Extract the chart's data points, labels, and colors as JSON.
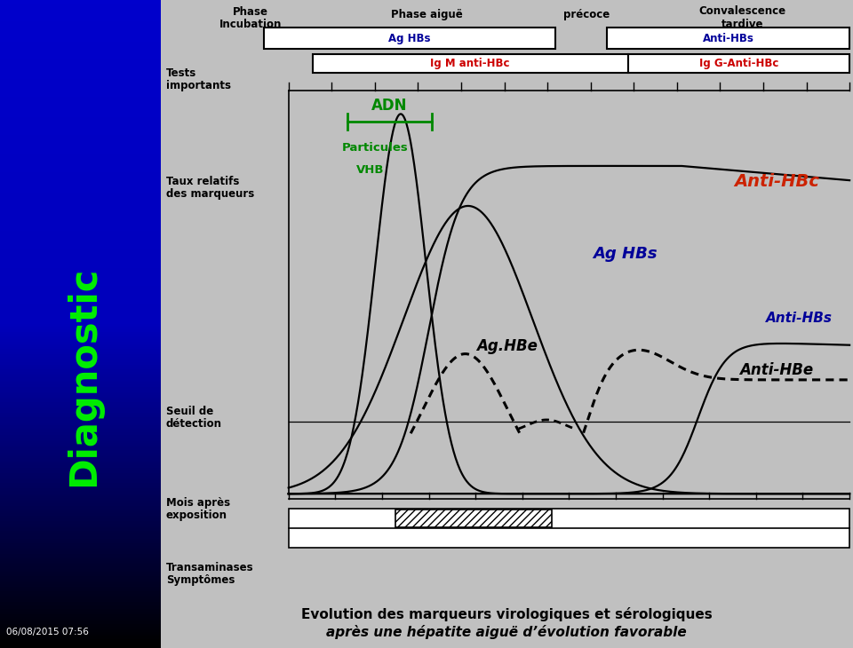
{
  "bg_left_top": "#0000CC",
  "bg_left_bottom": "#000000",
  "bg_right_color": "#C0C0C0",
  "title_line1": "Evolution des marqueurs virologiques et sérologiques",
  "title_line2": "après une hépatite aiguë d’évolution favorable",
  "diagnostic_label": "Diagnostic",
  "diagnostic_color": "#00EE00",
  "timestamp": "06/08/2015 07:56",
  "colors": {
    "anti_hbc": "#CC2200",
    "ag_hbs_text": "#000099",
    "anti_hbs_text": "#000099",
    "adn_green": "#008800",
    "box_blue_text": "#000099",
    "box_red_text": "#CC0000",
    "black": "#000000",
    "white": "#FFFFFF"
  },
  "phase_incubation": "Phase\nIncubation",
  "phase_aigue": "Phase aiguë",
  "precoce": "précoce",
  "convalescence": "Convalescence",
  "tardive": "tardive",
  "tests_importants": "Tests\nimportants",
  "ag_hbs_box": "Ag HBs",
  "anti_hbs_box": "Anti-HBs",
  "igm_anti_hbc": "Ig M anti-HBc",
  "igg_anti_hbc": "Ig G-Anti-HBc",
  "adn_label": "ADN",
  "particules_vhb": "Particules\nVHB",
  "anti_hbc_label": "Anti-HBc",
  "ag_hbs_curve": "Ag HBs",
  "anti_hbs_curve": "Anti-HBs",
  "ag_hbe_label": "Ag.HBe",
  "anti_hbe_label": "Anti-HBe",
  "taux_label": "Taux relatifs\ndes marqueurs",
  "seuil_label": "Seuil de\ndétection",
  "mois_label": "Mois après\nexposition",
  "transaminases_label": "Transaminases\nSymptômes"
}
